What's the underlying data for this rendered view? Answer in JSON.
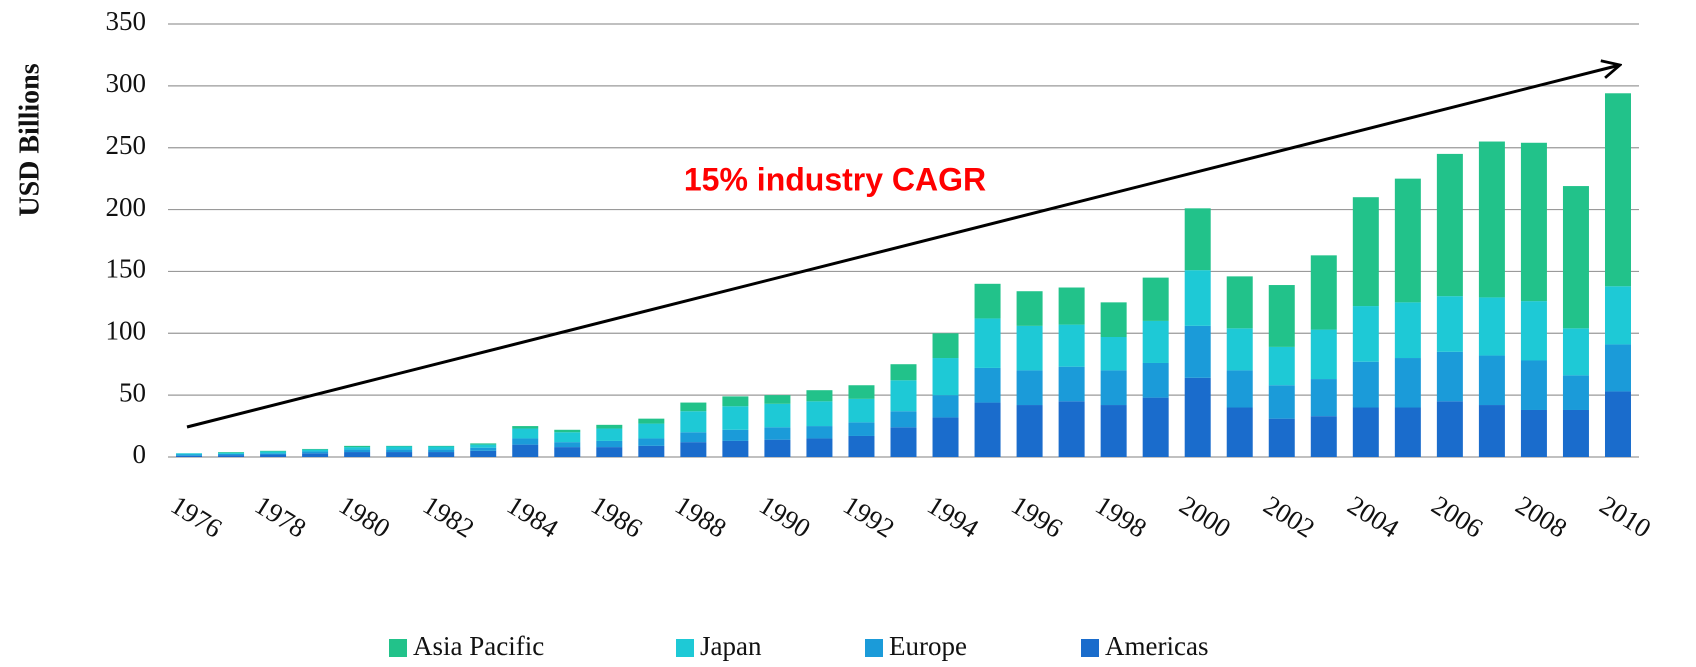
{
  "chart_data": {
    "type": "stacked_bar",
    "y_label": "USD Billions",
    "annotation": "15% industry CAGR",
    "categories": [
      "1976",
      null,
      "1978",
      null,
      "1980",
      null,
      "1982",
      null,
      "1984",
      null,
      "1986",
      null,
      "1988",
      null,
      "1990",
      null,
      "1992",
      null,
      "1994",
      null,
      "1996",
      null,
      "1998",
      null,
      "2000",
      null,
      "2002",
      null,
      "2004",
      null,
      "2006",
      null,
      "2008",
      null,
      "2010"
    ],
    "series": [
      {
        "name": "Americas",
        "color": "#1a6ccc",
        "values": [
          1,
          1.5,
          2,
          3,
          4,
          4,
          4,
          5,
          10,
          8,
          8,
          9,
          12,
          13,
          14,
          15,
          17,
          24,
          32,
          44,
          42,
          45,
          42,
          48,
          64,
          40,
          31,
          33,
          40,
          40,
          45,
          42,
          38,
          38,
          53
        ]
      },
      {
        "name": "Europe",
        "color": "#1b9bd9",
        "values": [
          1,
          1,
          1,
          1.5,
          2,
          2,
          2,
          2.5,
          5,
          4,
          5,
          6,
          8,
          9,
          10,
          10,
          11,
          13,
          18,
          28,
          28,
          28,
          28,
          28,
          42,
          30,
          27,
          30,
          37,
          40,
          40,
          40,
          40,
          28,
          38
        ]
      },
      {
        "name": "Japan",
        "color": "#1ec9d6",
        "values": [
          1,
          1,
          1.5,
          1.5,
          2,
          2.5,
          2.5,
          2.5,
          8,
          8,
          10,
          12,
          17,
          19,
          19,
          20,
          19,
          25,
          30,
          40,
          36,
          34,
          27,
          34,
          45,
          34,
          31,
          40,
          45,
          45,
          45,
          47,
          48,
          38,
          47
        ]
      },
      {
        "name": "Asia Pacific",
        "color": "#22c28a",
        "values": [
          0,
          0.5,
          0.5,
          0.5,
          1,
          0.5,
          0.5,
          1,
          2,
          2,
          3,
          4,
          7,
          8,
          7,
          9,
          11,
          13,
          20,
          28,
          28,
          30,
          28,
          35,
          50,
          42,
          50,
          60,
          88,
          100,
          115,
          126,
          128,
          115,
          156
        ]
      }
    ],
    "ylim": [
      0,
      350
    ],
    "yticks": [
      0,
      50,
      100,
      150,
      200,
      250,
      300,
      350
    ],
    "grid": true
  }
}
